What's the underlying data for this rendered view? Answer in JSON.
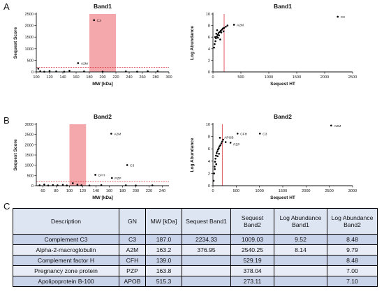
{
  "panels": {
    "a": "A",
    "b": "B",
    "c": "C"
  },
  "chart_data": [
    {
      "id": "band1_mw",
      "type": "scatter",
      "title": "Band1",
      "xlabel": "MW [kDa]",
      "ylabel": "Sequest Score",
      "xlim": [
        100,
        300
      ],
      "ylim": [
        0,
        2500
      ],
      "xticks": [
        100,
        120,
        140,
        160,
        180,
        200,
        220,
        240,
        260,
        280,
        300
      ],
      "yticks": [
        0,
        500,
        1000,
        1500,
        2000,
        2500
      ],
      "highlight_band": [
        180,
        220
      ],
      "threshold_y": 200,
      "points": [
        {
          "x": 187,
          "y": 2234
        },
        {
          "x": 163,
          "y": 377
        },
        {
          "x": 103,
          "y": 140
        },
        {
          "x": 106,
          "y": 30
        },
        {
          "x": 112,
          "y": 10
        },
        {
          "x": 120,
          "y": 40
        },
        {
          "x": 130,
          "y": 20
        },
        {
          "x": 142,
          "y": 10
        },
        {
          "x": 150,
          "y": 50
        },
        {
          "x": 172,
          "y": 20
        },
        {
          "x": 200,
          "y": 10
        },
        {
          "x": 235,
          "y": 20
        },
        {
          "x": 252,
          "y": 10
        },
        {
          "x": 268,
          "y": 30
        },
        {
          "x": 283,
          "y": 30
        }
      ],
      "annotations": [
        {
          "label": "C3",
          "x": 187,
          "y": 2234
        },
        {
          "label": "A2M",
          "x": 163,
          "y": 377
        }
      ]
    },
    {
      "id": "band1_abundance",
      "type": "scatter",
      "title": "Band1",
      "xlabel": "Sequest HT",
      "ylabel": "Log Abundance",
      "xlim": [
        0,
        2500
      ],
      "ylim": [
        0,
        10
      ],
      "xticks": [
        0,
        500,
        1000,
        1500,
        2000,
        2500
      ],
      "yticks": [
        0,
        2,
        4,
        6,
        8,
        10
      ],
      "threshold_x": 200,
      "points": [
        {
          "x": 2234,
          "y": 9.52
        },
        {
          "x": 377,
          "y": 8.14
        },
        {
          "x": 20,
          "y": 4.2
        },
        {
          "x": 30,
          "y": 4.8
        },
        {
          "x": 45,
          "y": 5.3
        },
        {
          "x": 55,
          "y": 5.8
        },
        {
          "x": 70,
          "y": 6.1
        },
        {
          "x": 85,
          "y": 6.4
        },
        {
          "x": 100,
          "y": 6.7
        },
        {
          "x": 120,
          "y": 6.9
        },
        {
          "x": 140,
          "y": 7.1
        },
        {
          "x": 160,
          "y": 7.3
        },
        {
          "x": 180,
          "y": 7.5
        },
        {
          "x": 200,
          "y": 7.6
        },
        {
          "x": 230,
          "y": 7.8
        },
        {
          "x": 260,
          "y": 8.0
        },
        {
          "x": 90,
          "y": 5.9
        },
        {
          "x": 60,
          "y": 6.6
        },
        {
          "x": 110,
          "y": 6.3
        },
        {
          "x": 150,
          "y": 6.8
        },
        {
          "x": 40,
          "y": 6.0
        },
        {
          "x": 75,
          "y": 7.2
        },
        {
          "x": 130,
          "y": 5.6
        },
        {
          "x": 190,
          "y": 7.0
        }
      ],
      "annotations": [
        {
          "label": "C3",
          "x": 2234,
          "y": 9.52
        },
        {
          "label": "A2M",
          "x": 377,
          "y": 8.14
        }
      ]
    },
    {
      "id": "band2_mw",
      "type": "scatter",
      "title": "Band2",
      "xlabel": "MW [kDa]",
      "ylabel": "Sequest Score",
      "xlim": [
        50,
        250
      ],
      "ylim": [
        0,
        3000
      ],
      "xticks": [
        60,
        80,
        100,
        120,
        140,
        160,
        180,
        200,
        220,
        240
      ],
      "yticks": [
        0,
        500,
        1000,
        1500,
        2000,
        2500,
        3000
      ],
      "highlight_band": [
        100,
        125
      ],
      "threshold_y": 200,
      "points": [
        {
          "x": 163,
          "y": 2540
        },
        {
          "x": 187,
          "y": 1009
        },
        {
          "x": 139,
          "y": 529
        },
        {
          "x": 164,
          "y": 378
        },
        {
          "x": 55,
          "y": 20
        },
        {
          "x": 62,
          "y": 60
        },
        {
          "x": 68,
          "y": 10
        },
        {
          "x": 75,
          "y": 30
        },
        {
          "x": 82,
          "y": 20
        },
        {
          "x": 90,
          "y": 40
        },
        {
          "x": 96,
          "y": 10
        },
        {
          "x": 105,
          "y": 120
        },
        {
          "x": 112,
          "y": 50
        },
        {
          "x": 118,
          "y": 20
        },
        {
          "x": 130,
          "y": 10
        },
        {
          "x": 148,
          "y": 30
        },
        {
          "x": 185,
          "y": 20
        },
        {
          "x": 200,
          "y": 10
        },
        {
          "x": 225,
          "y": 15
        }
      ],
      "annotations": [
        {
          "label": "A2M",
          "x": 163,
          "y": 2540
        },
        {
          "label": "C3",
          "x": 187,
          "y": 1009
        },
        {
          "label": "CFH",
          "x": 139,
          "y": 529
        },
        {
          "label": "PZP",
          "x": 164,
          "y": 378
        }
      ]
    },
    {
      "id": "band2_abundance",
      "type": "scatter",
      "title": "Band2",
      "xlabel": "Sequest HT",
      "ylabel": "Log Abundance",
      "xlim": [
        0,
        3000
      ],
      "ylim": [
        0,
        10
      ],
      "xticks": [
        0,
        500,
        1000,
        1500,
        2000,
        2500,
        3000
      ],
      "yticks": [
        0,
        2,
        4,
        6,
        8,
        10
      ],
      "threshold_x": 200,
      "points": [
        {
          "x": 2540,
          "y": 9.79
        },
        {
          "x": 529,
          "y": 8.48
        },
        {
          "x": 1009,
          "y": 8.48
        },
        {
          "x": 378,
          "y": 7.0
        },
        {
          "x": 273,
          "y": 7.1
        },
        {
          "x": 15,
          "y": 0.8
        },
        {
          "x": 25,
          "y": 2.0
        },
        {
          "x": 35,
          "y": 3.1
        },
        {
          "x": 45,
          "y": 3.9
        },
        {
          "x": 55,
          "y": 4.4
        },
        {
          "x": 65,
          "y": 4.9
        },
        {
          "x": 80,
          "y": 5.3
        },
        {
          "x": 95,
          "y": 5.6
        },
        {
          "x": 110,
          "y": 5.9
        },
        {
          "x": 125,
          "y": 6.1
        },
        {
          "x": 140,
          "y": 6.4
        },
        {
          "x": 160,
          "y": 6.6
        },
        {
          "x": 180,
          "y": 6.9
        },
        {
          "x": 200,
          "y": 7.2
        },
        {
          "x": 220,
          "y": 7.5
        },
        {
          "x": 70,
          "y": 3.5
        },
        {
          "x": 100,
          "y": 4.8
        },
        {
          "x": 130,
          "y": 5.2
        },
        {
          "x": 150,
          "y": 7.8
        },
        {
          "x": 40,
          "y": 2.7
        }
      ],
      "annotations": [
        {
          "label": "A2M",
          "x": 2540,
          "y": 9.79
        },
        {
          "label": "CFH",
          "x": 529,
          "y": 8.48
        },
        {
          "label": "C3",
          "x": 1009,
          "y": 8.48
        },
        {
          "label": "APOB",
          "x": 273,
          "y": 7.1
        },
        {
          "label": "PZP",
          "x": 378,
          "y": 7.0
        }
      ]
    }
  ],
  "table": {
    "headers": [
      "Description",
      "GN",
      "MW [kDa]",
      "Sequest Band1",
      "Sequest Band2",
      "Log Abundance Band1",
      "Log Abundance Band2"
    ],
    "rows": [
      [
        "Complement C3",
        "C3",
        "187.0",
        "2234.33",
        "1009.03",
        "9.52",
        "8.48"
      ],
      [
        "Alpha-2-macroglobulin",
        "A2M",
        "163.2",
        "376.95",
        "2540.25",
        "8.14",
        "9.79"
      ],
      [
        "Complement factor H",
        "CFH",
        "139.0",
        "",
        "529.19",
        "",
        "8.48"
      ],
      [
        "Pregnancy zone protein",
        "PZP",
        "163.8",
        "",
        "378.04",
        "",
        "7.00"
      ],
      [
        "Apolipoprotein B-100",
        "APOB",
        "515.3",
        "",
        "273.11",
        "",
        "7.10"
      ]
    ]
  },
  "colors": {
    "highlight": "#f4a3a6",
    "threshold": "#d9303a",
    "marker": "#000000",
    "axis": "#111111"
  }
}
